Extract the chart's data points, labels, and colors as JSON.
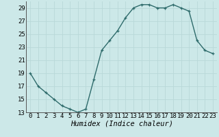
{
  "x": [
    0,
    1,
    2,
    3,
    4,
    5,
    6,
    7,
    8,
    9,
    10,
    11,
    12,
    13,
    14,
    15,
    16,
    17,
    18,
    19,
    20,
    21,
    22,
    23
  ],
  "y": [
    19,
    17,
    16,
    15,
    14,
    13.5,
    13,
    13.5,
    18,
    22.5,
    24,
    25.5,
    27.5,
    29,
    29.5,
    29.5,
    29,
    29,
    29.5,
    29,
    28.5,
    24,
    22.5,
    22
  ],
  "line_color": "#2e6b6b",
  "marker": "+",
  "marker_size": 3,
  "line_width": 1.0,
  "xlabel": "Humidex (Indice chaleur)",
  "xlabel_fontsize": 7.5,
  "xlabel_style": "italic",
  "xlim": [
    -0.5,
    23.5
  ],
  "ylim": [
    13,
    30
  ],
  "yticks": [
    13,
    15,
    17,
    19,
    21,
    23,
    25,
    27,
    29
  ],
  "xticks": [
    0,
    1,
    2,
    3,
    4,
    5,
    6,
    7,
    8,
    9,
    10,
    11,
    12,
    13,
    14,
    15,
    16,
    17,
    18,
    19,
    20,
    21,
    22,
    23
  ],
  "grid_color": "#b8d8d8",
  "background_color": "#cce8e8",
  "tick_fontsize": 6.5
}
